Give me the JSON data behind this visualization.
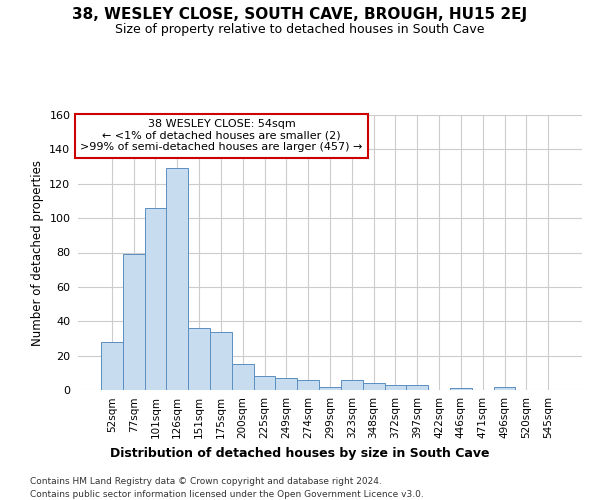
{
  "title": "38, WESLEY CLOSE, SOUTH CAVE, BROUGH, HU15 2EJ",
  "subtitle": "Size of property relative to detached houses in South Cave",
  "xlabel": "Distribution of detached houses by size in South Cave",
  "ylabel": "Number of detached properties",
  "bar_color": "#c8dcf0",
  "bar_edge_color": "#5a8fc0",
  "plot_bg_color": "#ffffff",
  "fig_bg_color": "#ffffff",
  "grid_color": "#cccccc",
  "categories": [
    "52sqm",
    "77sqm",
    "101sqm",
    "126sqm",
    "151sqm",
    "175sqm",
    "200sqm",
    "225sqm",
    "249sqm",
    "274sqm",
    "299sqm",
    "323sqm",
    "348sqm",
    "372sqm",
    "397sqm",
    "422sqm",
    "446sqm",
    "471sqm",
    "496sqm",
    "520sqm",
    "545sqm"
  ],
  "values": [
    28,
    79,
    106,
    129,
    36,
    34,
    15,
    8,
    7,
    6,
    2,
    6,
    4,
    3,
    3,
    0,
    1,
    0,
    2,
    0,
    0
  ],
  "annotation_text_line1": "38 WESLEY CLOSE: 54sqm",
  "annotation_text_line2": "← <1% of detached houses are smaller (2)",
  "annotation_text_line3": ">99% of semi-detached houses are larger (457) →",
  "annotation_box_edgecolor": "#cc0000",
  "annotation_fill": "#ffffff",
  "ylim": [
    0,
    160
  ],
  "yticks": [
    0,
    20,
    40,
    60,
    80,
    100,
    120,
    140,
    160
  ],
  "footer_line1": "Contains HM Land Registry data © Crown copyright and database right 2024.",
  "footer_line2": "Contains public sector information licensed under the Open Government Licence v3.0."
}
